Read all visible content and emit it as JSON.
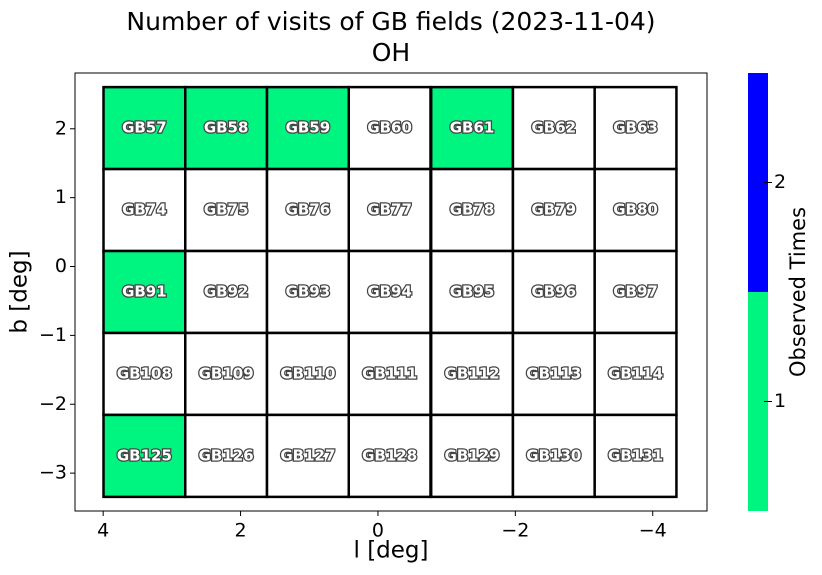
{
  "chart_data": {
    "type": "heatmap",
    "title": "Number of visits of GB fields (2023-11-04)",
    "subtitle": "OH",
    "xlabel": "l [deg]",
    "ylabel": "b [deg]",
    "xlim": [
      4.41,
      -4.79
    ],
    "ylim": [
      -3.55,
      2.81
    ],
    "xticks": [
      4,
      2,
      0,
      {
        "value": -2,
        "label": "−2"
      },
      {
        "value": -4,
        "label": "−4"
      }
    ],
    "yticks": [
      {
        "value": -3,
        "label": "−3"
      },
      {
        "value": -2,
        "label": "−2"
      },
      {
        "value": -1,
        "label": "−1"
      },
      0,
      1,
      2
    ],
    "cell_size": 1.19,
    "cells": [
      {
        "name": "GB57",
        "l": 3.4,
        "b": 2.01,
        "value": 1
      },
      {
        "name": "GB58",
        "l": 2.21,
        "b": 2.01,
        "value": 1
      },
      {
        "name": "GB59",
        "l": 1.02,
        "b": 2.01,
        "value": 1
      },
      {
        "name": "GB60",
        "l": -0.17,
        "b": 2.01,
        "value": 0
      },
      {
        "name": "GB61",
        "l": -1.37,
        "b": 2.01,
        "value": 1
      },
      {
        "name": "GB62",
        "l": -2.56,
        "b": 2.01,
        "value": 0
      },
      {
        "name": "GB63",
        "l": -3.75,
        "b": 2.01,
        "value": 0
      },
      {
        "name": "GB74",
        "l": 3.4,
        "b": 0.82,
        "value": 0
      },
      {
        "name": "GB75",
        "l": 2.21,
        "b": 0.82,
        "value": 0
      },
      {
        "name": "GB76",
        "l": 1.02,
        "b": 0.82,
        "value": 0
      },
      {
        "name": "GB77",
        "l": -0.17,
        "b": 0.82,
        "value": 0
      },
      {
        "name": "GB78",
        "l": -1.37,
        "b": 0.82,
        "value": 0
      },
      {
        "name": "GB79",
        "l": -2.56,
        "b": 0.82,
        "value": 0
      },
      {
        "name": "GB80",
        "l": -3.75,
        "b": 0.82,
        "value": 0
      },
      {
        "name": "GB91",
        "l": 3.4,
        "b": -0.37,
        "value": 1
      },
      {
        "name": "GB92",
        "l": 2.21,
        "b": -0.37,
        "value": 0
      },
      {
        "name": "GB93",
        "l": 1.02,
        "b": -0.37,
        "value": 0
      },
      {
        "name": "GB94",
        "l": -0.17,
        "b": -0.37,
        "value": 0
      },
      {
        "name": "GB95",
        "l": -1.37,
        "b": -0.37,
        "value": 0
      },
      {
        "name": "GB96",
        "l": -2.56,
        "b": -0.37,
        "value": 0
      },
      {
        "name": "GB97",
        "l": -3.75,
        "b": -0.37,
        "value": 0
      },
      {
        "name": "GB108",
        "l": 3.4,
        "b": -1.56,
        "value": 0
      },
      {
        "name": "GB109",
        "l": 2.21,
        "b": -1.56,
        "value": 0
      },
      {
        "name": "GB110",
        "l": 1.02,
        "b": -1.56,
        "value": 0
      },
      {
        "name": "GB111",
        "l": -0.17,
        "b": -1.56,
        "value": 0
      },
      {
        "name": "GB112",
        "l": -1.37,
        "b": -1.56,
        "value": 0
      },
      {
        "name": "GB113",
        "l": -2.56,
        "b": -1.56,
        "value": 0
      },
      {
        "name": "GB114",
        "l": -3.75,
        "b": -1.56,
        "value": 0
      },
      {
        "name": "GB125",
        "l": 3.4,
        "b": -2.75,
        "value": 1
      },
      {
        "name": "GB126",
        "l": 2.21,
        "b": -2.75,
        "value": 0
      },
      {
        "name": "GB127",
        "l": 1.02,
        "b": -2.75,
        "value": 0
      },
      {
        "name": "GB128",
        "l": -0.17,
        "b": -2.75,
        "value": 0
      },
      {
        "name": "GB129",
        "l": -1.37,
        "b": -2.75,
        "value": 0
      },
      {
        "name": "GB130",
        "l": -2.56,
        "b": -2.75,
        "value": 0
      },
      {
        "name": "GB131",
        "l": -3.75,
        "b": -2.75,
        "value": 0
      }
    ],
    "colorbar": {
      "label": "Observed Times",
      "lim": [
        0.5,
        2.5
      ],
      "ticks": [
        1,
        2
      ],
      "colors": [
        "#00f580",
        "#0000ff"
      ]
    }
  }
}
